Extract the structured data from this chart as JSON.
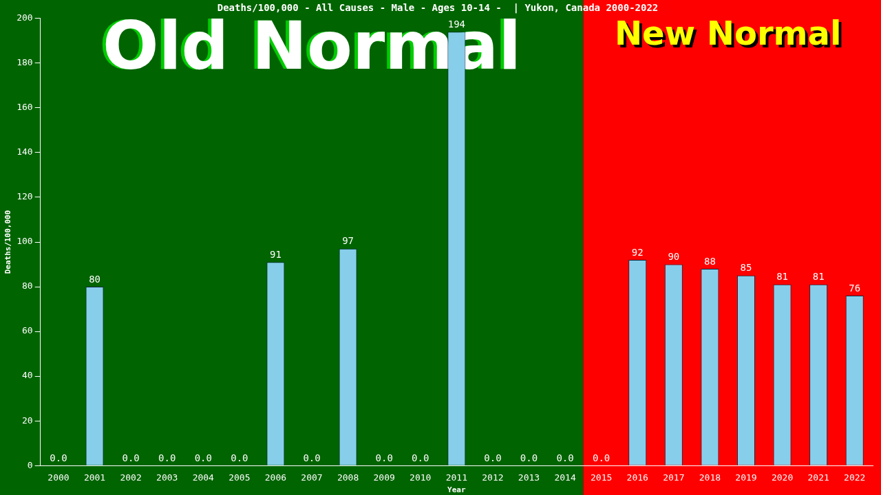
{
  "chart_data": {
    "type": "bar",
    "title": "Deaths/100,000 - All Causes - Male - Ages 10-14 -  | Yukon, Canada 2000-2022",
    "xlabel": "Year",
    "ylabel": "Deaths/100,000",
    "categories": [
      "2000",
      "2001",
      "2002",
      "2003",
      "2004",
      "2005",
      "2006",
      "2007",
      "2008",
      "2009",
      "2010",
      "2011",
      "2012",
      "2013",
      "2014",
      "2015",
      "2016",
      "2017",
      "2018",
      "2019",
      "2020",
      "2021",
      "2022"
    ],
    "values": [
      0,
      80,
      0,
      0,
      0,
      0,
      91,
      0,
      97,
      0,
      0,
      194,
      0,
      0,
      0,
      0,
      92,
      90,
      88,
      85,
      81,
      81,
      76
    ],
    "value_labels": [
      "0.0",
      "80",
      "0.0",
      "0.0",
      "0.0",
      "0.0",
      "91",
      "0.0",
      "97",
      "0.0",
      "0.0",
      "194",
      "0.0",
      "0.0",
      "0.0",
      "0.0",
      "92",
      "90",
      "88",
      "85",
      "81",
      "81",
      "76"
    ],
    "color": "#87ceeb",
    "ylim": [
      0,
      200
    ],
    "yticks": [
      0,
      20,
      40,
      60,
      80,
      100,
      120,
      140,
      160,
      180,
      200
    ],
    "bands": [
      {
        "axis": "x",
        "from": "2000",
        "to": "2014",
        "label": "Old Normal",
        "color": "#006400"
      },
      {
        "axis": "x",
        "from": "2015",
        "to": "2022",
        "label": "New Normal",
        "color": "#ff0000"
      }
    ],
    "grid": false,
    "legend": false
  }
}
